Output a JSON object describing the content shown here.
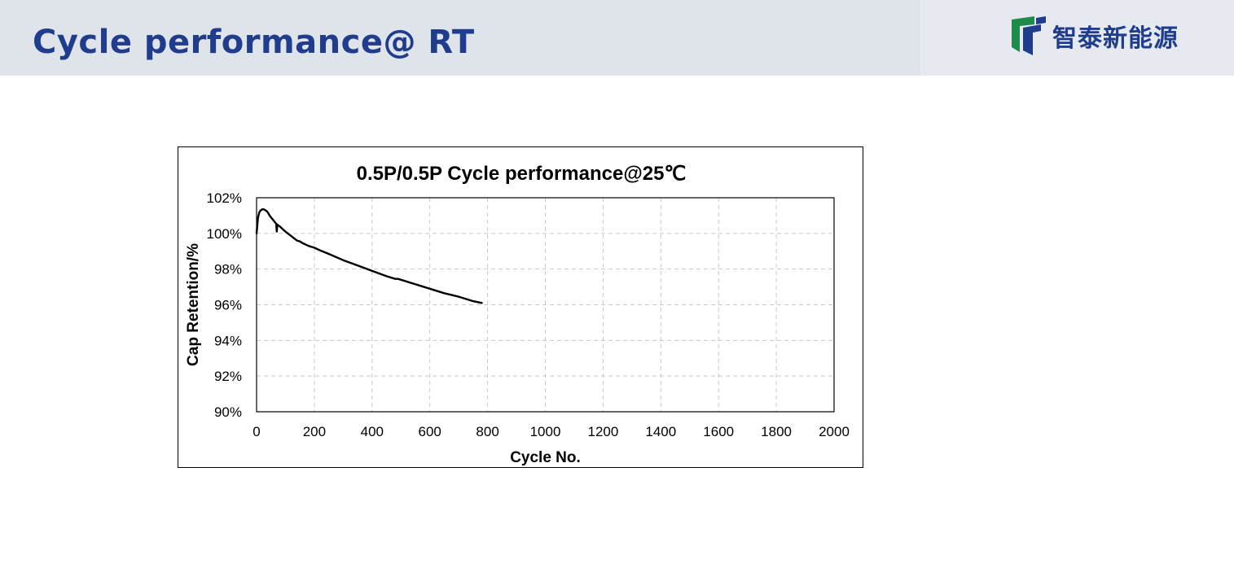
{
  "header": {
    "title": "Cycle performance@ RT",
    "brand_name": "智泰新能源",
    "brand_icon": "zhitai-logo-icon",
    "colors": {
      "title": "#1f3d8c",
      "band": "#dfe3ea",
      "logo_green": "#1e8a4c",
      "logo_blue": "#1f3d8c"
    }
  },
  "chart_data": {
    "type": "line",
    "title": "0.5P/0.5P Cycle performance@25℃",
    "xlabel": "Cycle No.",
    "ylabel": "Cap Retention/%",
    "xlim": [
      0,
      2000
    ],
    "ylim": [
      90,
      102
    ],
    "x_ticks": [
      "0",
      "200",
      "400",
      "600",
      "800",
      "1000",
      "1200",
      "1400",
      "1600",
      "1800",
      "2000"
    ],
    "y_ticks": [
      "90%",
      "92%",
      "94%",
      "96%",
      "98%",
      "100%",
      "102%"
    ],
    "grid": "dashed",
    "legend": "none",
    "series": [
      {
        "color": "#000000",
        "x": [
          0,
          5,
          10,
          15,
          20,
          25,
          30,
          35,
          40,
          45,
          50,
          55,
          60,
          65,
          68,
          70,
          72,
          75,
          80,
          90,
          100,
          120,
          140,
          150,
          160,
          180,
          200,
          220,
          250,
          300,
          350,
          400,
          450,
          480,
          490,
          500,
          550,
          600,
          650,
          700,
          750,
          780
        ],
        "y": [
          100.0,
          100.9,
          101.2,
          101.3,
          101.35,
          101.35,
          101.3,
          101.25,
          101.15,
          101.0,
          100.9,
          100.8,
          100.7,
          100.6,
          100.55,
          100.1,
          100.5,
          100.45,
          100.4,
          100.25,
          100.1,
          99.85,
          99.6,
          99.55,
          99.45,
          99.3,
          99.2,
          99.05,
          98.85,
          98.5,
          98.2,
          97.9,
          97.6,
          97.45,
          97.45,
          97.4,
          97.15,
          96.9,
          96.65,
          96.45,
          96.2,
          96.1
        ]
      }
    ]
  }
}
